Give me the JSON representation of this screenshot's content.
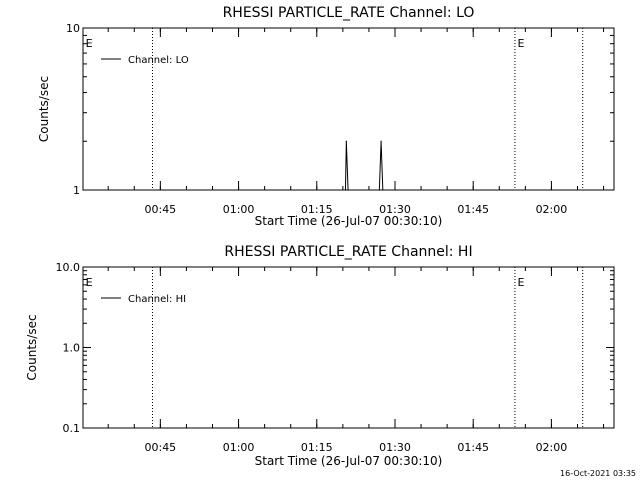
{
  "timestamp": "16-Oct-2021 03:35",
  "chart_data": [
    {
      "type": "line",
      "title": "RHESSI PARTICLE_RATE Channel: LO",
      "xlabel": "Start Time (26-Jul-07 00:30:10)",
      "ylabel": "Counts/sec",
      "yscale": "log",
      "ylim": [
        1,
        10
      ],
      "yticks": [
        {
          "v": 1,
          "label": "1"
        },
        {
          "v": 10,
          "label": "10"
        }
      ],
      "xlim": [
        "00:30:10",
        "02:12:00"
      ],
      "xticks": [
        "00:45",
        "01:00",
        "01:15",
        "01:30",
        "01:45",
        "02:00"
      ],
      "vlines": [
        "00:43:30",
        "01:53:00",
        "02:06:00"
      ],
      "markers": [
        {
          "x": "00:30:40",
          "label": "E"
        },
        {
          "x": "01:53:30",
          "label": "E"
        }
      ],
      "legend": "top-left",
      "series": [
        {
          "name": "Channel: LO",
          "x": [
            "01:20:30",
            "01:20:40",
            "01:21:00",
            "01:27:00",
            "01:27:20",
            "01:27:40"
          ],
          "y": [
            1,
            2,
            1,
            1,
            2,
            1
          ]
        }
      ]
    },
    {
      "type": "line",
      "title": "RHESSI PARTICLE_RATE Channel: HI",
      "xlabel": "Start Time (26-Jul-07 00:30:10)",
      "ylabel": "Counts/sec",
      "yscale": "log",
      "ylim": [
        0.1,
        10
      ],
      "yticks": [
        {
          "v": 0.1,
          "label": "0.1"
        },
        {
          "v": 1,
          "label": "1.0"
        },
        {
          "v": 10,
          "label": "10.0"
        }
      ],
      "xlim": [
        "00:30:10",
        "02:12:00"
      ],
      "xticks": [
        "00:45",
        "01:00",
        "01:15",
        "01:30",
        "01:45",
        "02:00"
      ],
      "vlines": [
        "00:43:30",
        "01:53:00",
        "02:06:00"
      ],
      "markers": [
        {
          "x": "00:30:40",
          "label": "E"
        },
        {
          "x": "01:53:30",
          "label": "E"
        }
      ],
      "legend": "top-left",
      "series": [
        {
          "name": "Channel: HI",
          "x": [],
          "y": []
        }
      ]
    }
  ]
}
